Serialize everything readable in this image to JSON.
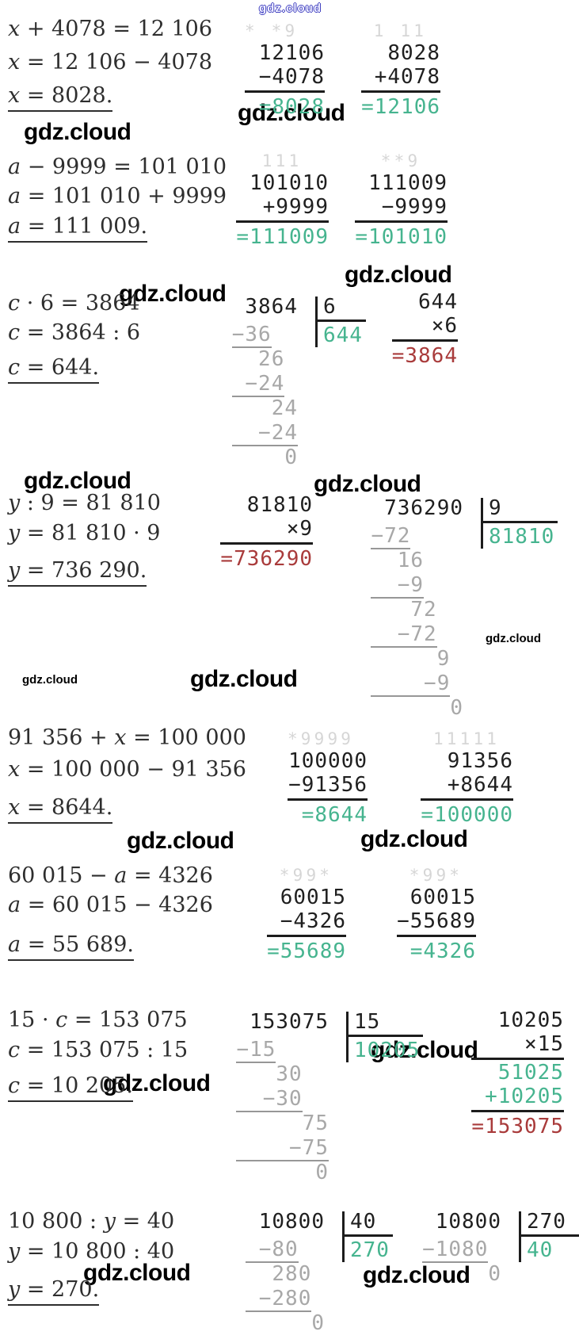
{
  "page_title": "Equation solutions with column-arithmetic checks",
  "watermark": {
    "text": "gdz.cloud"
  },
  "colors": {
    "check_green": "#46b48f",
    "mult_result_red": "#a93b3b",
    "carry_gray": "#d6d6d6",
    "division_step_gray": "#a8a8a8",
    "ink": "#1f1f1f"
  },
  "blocks": [
    {
      "equations": [
        "x + 4078 = 12 106",
        "x = 12 106 − 4078",
        "x = 8028."
      ],
      "works": [
        {
          "type": "addsub",
          "carry": "* *9  ",
          "lines": [
            "12106",
            "−4078"
          ],
          "result": "=8028",
          "result_color": "green"
        },
        {
          "type": "addsub",
          "carry": "1 11 ",
          "lines": [
            "8028",
            "+4078"
          ],
          "result": "=12106",
          "result_color": "green"
        }
      ]
    },
    {
      "equations": [
        "a − 9999 = 101 010",
        "a = 101 010 + 9999",
        "a = 111 009."
      ],
      "works": [
        {
          "type": "addsub",
          "carry": "111  ",
          "lines": [
            "101010",
            "+9999"
          ],
          "result": "=111009",
          "result_color": "green"
        },
        {
          "type": "addsub",
          "carry": "**9  ",
          "lines": [
            "111009",
            "−9999"
          ],
          "result": "=101010",
          "result_color": "green"
        }
      ]
    },
    {
      "equations": [
        "c · 6 = 3864",
        "c = 3864 : 6",
        "c = 644."
      ],
      "works": [
        {
          "type": "longdiv",
          "dividend": "3864",
          "divisor": "6",
          "quotient": "644",
          "steps": [
            {
              "t": "−36",
              "rule": true
            },
            {
              "t": "  26"
            },
            {
              "t": " −24",
              "rule": true
            },
            {
              "t": "   24"
            },
            {
              "t": "  −24",
              "rule": true
            },
            {
              "t": "    0"
            }
          ]
        },
        {
          "type": "mult",
          "lines": [
            "644",
            "×6"
          ],
          "result": "=3864",
          "result_color": "red"
        }
      ]
    },
    {
      "equations": [
        "y : 9 = 81 810",
        "y = 81 810 · 9",
        "y = 736 290."
      ],
      "works": [
        {
          "type": "mult",
          "lines": [
            "81810",
            "×9"
          ],
          "result": "=736290",
          "result_color": "red"
        },
        {
          "type": "longdiv",
          "dividend": "736290",
          "divisor": "9",
          "quotient": "81810",
          "steps": [
            {
              "t": "−72",
              "rule": true
            },
            {
              "t": "  16"
            },
            {
              "t": "  −9",
              "rule": true
            },
            {
              "t": "   72"
            },
            {
              "t": "  −72",
              "rule": true
            },
            {
              "t": "     9"
            },
            {
              "t": "    −9",
              "rule": true
            },
            {
              "t": "      0"
            }
          ]
        }
      ]
    },
    {
      "equations": [
        "91 356 + x = 100 000",
        "x = 100 000 − 91 356",
        "x = 8644."
      ],
      "works": [
        {
          "type": "addsub",
          "carry": "*9999 ",
          "lines": [
            "100000",
            "−91356"
          ],
          "result": "=8644",
          "result_color": "green"
        },
        {
          "type": "addsub",
          "carry": "11111 ",
          "lines": [
            "91356",
            "+8644"
          ],
          "result": "=100000",
          "result_color": "green"
        }
      ]
    },
    {
      "equations": [
        "60 015 − a = 4326",
        "a = 60 015 − 4326",
        "a = 55 689."
      ],
      "works": [
        {
          "type": "addsub",
          "carry": "*99* ",
          "lines": [
            "60015",
            "−4326"
          ],
          "result": "=55689",
          "result_color": "green"
        },
        {
          "type": "addsub",
          "carry": "*99* ",
          "lines": [
            "60015",
            "−55689"
          ],
          "result": "=4326",
          "result_color": "green"
        }
      ]
    },
    {
      "equations": [
        "15 · c = 153 075",
        "c = 153 075 : 15",
        "c = 10 205."
      ],
      "works": [
        {
          "type": "longdiv",
          "dividend": "153075",
          "divisor": "15",
          "quotient": "10205",
          "steps": [
            {
              "t": "−15",
              "rule": true
            },
            {
              "t": "   30"
            },
            {
              "t": "  −30",
              "rule": true
            },
            {
              "t": "     75"
            },
            {
              "t": "    −75",
              "rule": true
            },
            {
              "t": "      0"
            }
          ]
        },
        {
          "type": "mult",
          "lines": [
            "10205",
            "×15"
          ],
          "partials": [
            "51025",
            "+10205"
          ],
          "result": "=153075",
          "result_color": "red"
        }
      ]
    },
    {
      "equations": [
        "10 800 : y = 40",
        "y = 10 800 : 40",
        "y = 270."
      ],
      "works": [
        {
          "type": "longdiv",
          "dividend": "10800",
          "divisor": "40",
          "quotient": "270",
          "steps": [
            {
              "t": " −80",
              "rule": true
            },
            {
              "t": "  280"
            },
            {
              "t": " −280",
              "rule": true
            },
            {
              "t": "     0"
            }
          ]
        },
        {
          "type": "longdiv",
          "dividend": "10800",
          "divisor": "270",
          "quotient": "40",
          "steps": [
            {
              "t": "−1080",
              "rule": true
            },
            {
              "t": "     0"
            }
          ]
        }
      ]
    }
  ]
}
